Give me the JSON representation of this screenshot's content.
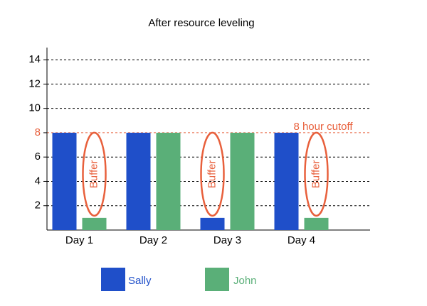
{
  "chart_data": {
    "type": "bar",
    "title": "After resource leveling",
    "categories": [
      "Day 1",
      "Day 2",
      "Day 3",
      "Day 4"
    ],
    "series": [
      {
        "name": "Sally",
        "color": "#1f4fc9",
        "values": [
          8,
          8,
          1,
          8
        ]
      },
      {
        "name": "John",
        "color": "#5aaf78",
        "values": [
          1,
          8,
          8,
          1
        ]
      }
    ],
    "ylim": [
      0,
      15
    ],
    "yticks": [
      2,
      4,
      6,
      8,
      10,
      12,
      14
    ],
    "grid": true,
    "cutoff": {
      "value": 8,
      "label": "8 hour cutoff",
      "color": "#e8603c"
    },
    "buffers": [
      {
        "category": "Day 1",
        "series": "John",
        "label": "Buffer"
      },
      {
        "category": "Day 3",
        "series": "Sally",
        "label": "Buffer"
      },
      {
        "category": "Day 4",
        "series": "John",
        "label": "Buffer"
      }
    ],
    "legend": "bottom"
  }
}
